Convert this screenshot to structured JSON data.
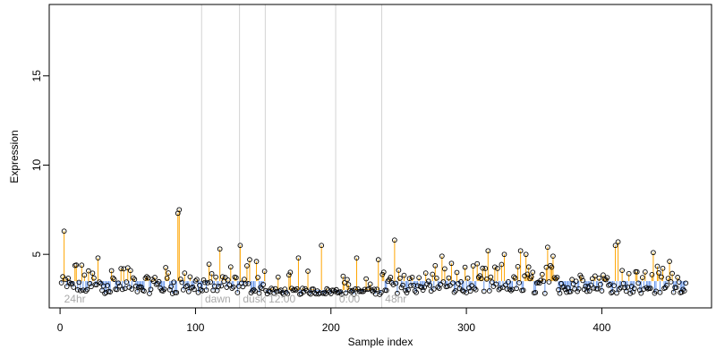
{
  "chart_data": {
    "type": "scatter",
    "xlabel": "Sample index",
    "ylabel": "Expression",
    "xlim": [
      -8,
      481
    ],
    "ylim": [
      2.0,
      19.0
    ],
    "x_ticks": [
      0,
      100,
      200,
      300,
      400
    ],
    "y_ticks": [
      5,
      10,
      15
    ],
    "grid": false,
    "colors": {
      "above_baseline": "#ffa500",
      "below_baseline": "#6495ed",
      "separator": "#d3d3d3",
      "point_stroke": "#000000",
      "group_label": "#a9a9a9"
    },
    "groups": [
      {
        "label": "24hr",
        "start": 1,
        "end": 104,
        "baseline": 3.5
      },
      {
        "label": "dawn",
        "start": 105,
        "end": 132,
        "baseline": 3.5
      },
      {
        "label": "dusk",
        "start": 133,
        "end": 151,
        "baseline": 3.5
      },
      {
        "label": "12:00",
        "start": 152,
        "end": 203,
        "baseline": 3.0
      },
      {
        "label": "0:00",
        "start": 204,
        "end": 237,
        "baseline": 3.0
      },
      {
        "label": "48hr",
        "start": 238,
        "end": 462,
        "baseline": 3.5
      }
    ],
    "highlight_points": [
      {
        "x": 3,
        "y": 6.3
      },
      {
        "x": 12,
        "y": 4.4
      },
      {
        "x": 28,
        "y": 4.8
      },
      {
        "x": 45,
        "y": 4.2
      },
      {
        "x": 87,
        "y": 7.3
      },
      {
        "x": 88,
        "y": 7.5
      },
      {
        "x": 118,
        "y": 5.3
      },
      {
        "x": 133,
        "y": 5.5
      },
      {
        "x": 140,
        "y": 4.7
      },
      {
        "x": 145,
        "y": 4.6
      },
      {
        "x": 176,
        "y": 4.8
      },
      {
        "x": 193,
        "y": 5.5
      },
      {
        "x": 219,
        "y": 4.8
      },
      {
        "x": 235,
        "y": 4.7
      },
      {
        "x": 247,
        "y": 5.8
      },
      {
        "x": 282,
        "y": 4.9
      },
      {
        "x": 316,
        "y": 5.2
      },
      {
        "x": 328,
        "y": 5.0
      },
      {
        "x": 340,
        "y": 5.2
      },
      {
        "x": 344,
        "y": 5.0
      },
      {
        "x": 360,
        "y": 5.4
      },
      {
        "x": 364,
        "y": 4.9
      },
      {
        "x": 410,
        "y": 5.5
      },
      {
        "x": 412,
        "y": 5.7
      },
      {
        "x": 438,
        "y": 5.1
      },
      {
        "x": 450,
        "y": 4.6
      }
    ]
  }
}
